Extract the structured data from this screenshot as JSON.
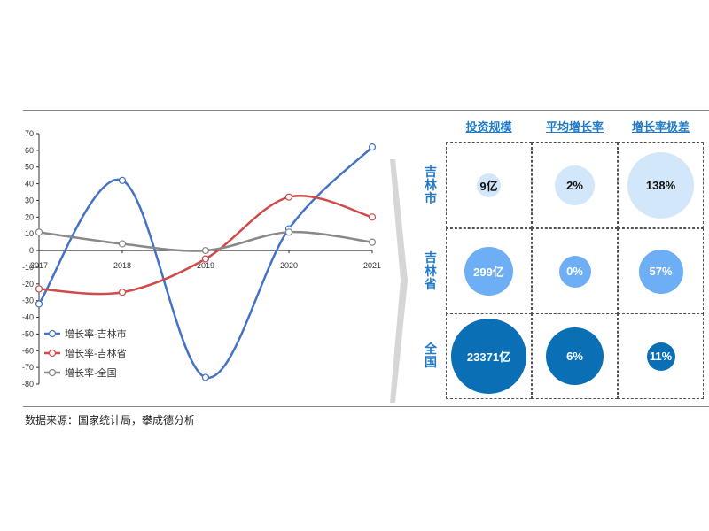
{
  "chart_data": {
    "type": "line",
    "categories": [
      "2017",
      "2018",
      "2019",
      "2020",
      "2021"
    ],
    "yticks": [
      70,
      60,
      50,
      40,
      30,
      20,
      10,
      0,
      -10,
      -20,
      -30,
      -40,
      -50,
      -60,
      -70,
      -80
    ],
    "ylim": [
      -80,
      70
    ],
    "legend_position": "bottom-left",
    "series": [
      {
        "name": "增长率-吉林市",
        "color": "#4472c4",
        "values": [
          -32,
          42,
          -76,
          13,
          62
        ]
      },
      {
        "name": "增长率-吉林省",
        "color": "#d04a4a",
        "values": [
          -23,
          -25,
          -5,
          32,
          20
        ]
      },
      {
        "name": "增长率-全国",
        "color": "#888888",
        "values": [
          11,
          4,
          0,
          11,
          5
        ]
      }
    ]
  },
  "matrix": {
    "columns": [
      "投资规模",
      "平均增长率",
      "增长率极差"
    ],
    "rows": [
      {
        "label": "吉林市",
        "color": "#d3e7fa",
        "text_color": "#111111",
        "cells": [
          "9亿",
          "2%",
          "138%"
        ]
      },
      {
        "label": "吉林省",
        "color": "#6daef5",
        "text_color": "#ffffff",
        "cells": [
          "299亿",
          "0%",
          "57%"
        ]
      },
      {
        "label": "全国",
        "color": "#0a6fb5",
        "text_color": "#ffffff",
        "cells": [
          "23371亿",
          "6%",
          "11%"
        ]
      }
    ]
  },
  "source": "数据来源：国家统计局，攀成德分析"
}
